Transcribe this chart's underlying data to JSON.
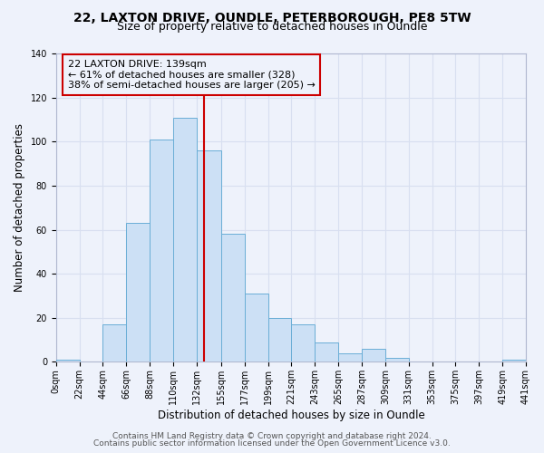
{
  "title": "22, LAXTON DRIVE, OUNDLE, PETERBOROUGH, PE8 5TW",
  "subtitle": "Size of property relative to detached houses in Oundle",
  "xlabel": "Distribution of detached houses by size in Oundle",
  "ylabel": "Number of detached properties",
  "bar_edges": [
    0,
    22,
    44,
    66,
    88,
    110,
    132,
    155,
    177,
    199,
    221,
    243,
    265,
    287,
    309,
    331,
    353,
    375,
    397,
    419,
    441
  ],
  "bar_heights": [
    1,
    0,
    17,
    63,
    101,
    111,
    96,
    58,
    31,
    20,
    17,
    9,
    4,
    6,
    2,
    0,
    0,
    0,
    0,
    1
  ],
  "bar_color": "#cce0f5",
  "bar_edge_color": "#6aaed6",
  "vline_x": 139,
  "vline_color": "#cc0000",
  "annotation_line1": "22 LAXTON DRIVE: 139sqm",
  "annotation_line2": "← 61% of detached houses are smaller (328)",
  "annotation_line3": "38% of semi-detached houses are larger (205) →",
  "annotation_box_color": "#cc0000",
  "ylim": [
    0,
    140
  ],
  "yticks": [
    0,
    20,
    40,
    60,
    80,
    100,
    120,
    140
  ],
  "xtick_labels": [
    "0sqm",
    "22sqm",
    "44sqm",
    "66sqm",
    "88sqm",
    "110sqm",
    "132sqm",
    "155sqm",
    "177sqm",
    "199sqm",
    "221sqm",
    "243sqm",
    "265sqm",
    "287sqm",
    "309sqm",
    "331sqm",
    "353sqm",
    "375sqm",
    "397sqm",
    "419sqm",
    "441sqm"
  ],
  "footer_line1": "Contains HM Land Registry data © Crown copyright and database right 2024.",
  "footer_line2": "Contains public sector information licensed under the Open Government Licence v3.0.",
  "background_color": "#eef2fb",
  "grid_color": "#d8dff0",
  "title_fontsize": 10,
  "subtitle_fontsize": 9,
  "axis_label_fontsize": 8.5,
  "tick_fontsize": 7,
  "footer_fontsize": 6.5,
  "annotation_fontsize": 8
}
